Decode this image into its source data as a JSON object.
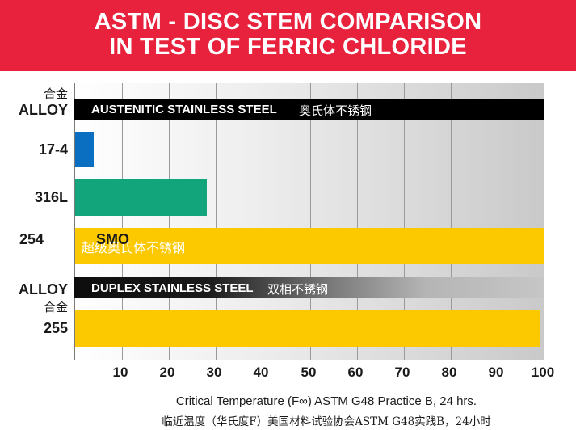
{
  "title": {
    "line1": "ASTM - DISC STEM COMPARISON",
    "line2": "IN TEST OF FERRIC CHLORIDE"
  },
  "labels": {
    "alloy_top_cn": "合金",
    "alloy_top": "ALLOY",
    "alloy_mid": "ALLOY",
    "alloy_mid_cn": "合金"
  },
  "bands": [
    {
      "label": "AUSTENITIC STAINLESS STEEL",
      "label_cn": "奥氏体不锈钢"
    },
    {
      "label": "DUPLEX STAINLESS STEEL",
      "label_cn": "双相不锈钢"
    }
  ],
  "chart_data": {
    "type": "bar",
    "orientation": "horizontal",
    "categories": [
      "17-4",
      "316L",
      "254 SMO",
      "255"
    ],
    "values": [
      4,
      28,
      100,
      99
    ],
    "colors": [
      "#0a6fc1",
      "#12a57c",
      "#fcc800",
      "#fcc800"
    ],
    "xlim": [
      0,
      100
    ],
    "xticks": [
      10,
      20,
      30,
      40,
      50,
      60,
      70,
      80,
      90,
      100
    ],
    "xlabel": "Critical Temperature (F∞) ASTM G48 Practice B, 24 hrs.",
    "xlabel_cn": "临近温度（华氏度F）美国材料试验协会ASTM G48实践B，24小时",
    "annotations": [
      {
        "category": "254 SMO",
        "text": "超级奥氏体不锈钢"
      }
    ],
    "grid": true
  }
}
